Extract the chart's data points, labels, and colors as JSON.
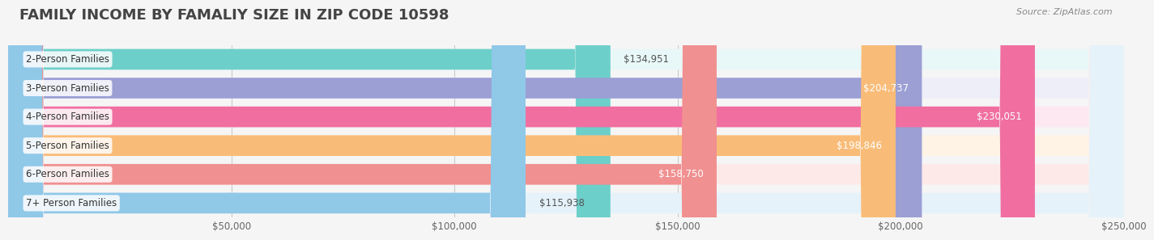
{
  "title": "FAMILY INCOME BY FAMALIY SIZE IN ZIP CODE 10598",
  "source": "Source: ZipAtlas.com",
  "categories": [
    "2-Person Families",
    "3-Person Families",
    "4-Person Families",
    "5-Person Families",
    "6-Person Families",
    "7+ Person Families"
  ],
  "values": [
    134951,
    204737,
    230051,
    198846,
    158750,
    115938
  ],
  "bar_colors": [
    "#6DCFCA",
    "#9B9FD4",
    "#F06FA0",
    "#F9BC78",
    "#F09090",
    "#90C8E8"
  ],
  "bar_bg_colors": [
    "#E8F7F7",
    "#EEEEF9",
    "#FDE8F2",
    "#FEF3E5",
    "#FDEAE8",
    "#E5F2FA"
  ],
  "value_labels": [
    "$134,951",
    "$204,737",
    "$230,051",
    "$198,846",
    "$158,750",
    "$115,938"
  ],
  "xlim": [
    0,
    250000
  ],
  "xticks": [
    0,
    50000,
    100000,
    150000,
    200000,
    250000
  ],
  "xtick_labels": [
    "",
    "$50,000",
    "$100,000",
    "$150,000",
    "$200,000",
    "$250,000"
  ],
  "background_color": "#f5f5f5",
  "title_fontsize": 13,
  "label_fontsize": 8.5,
  "value_fontsize": 8.5,
  "source_fontsize": 8
}
